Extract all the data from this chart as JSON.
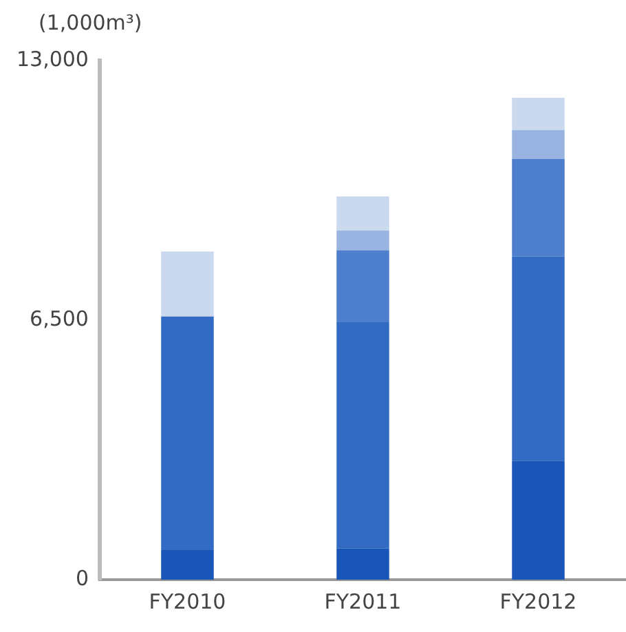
{
  "chart_data": {
    "type": "bar",
    "ylabel": "(1,000m³)",
    "categories": [
      "FY2010",
      "FY2011",
      "FY2012"
    ],
    "stacked": true,
    "series": [
      {
        "color": "#1a56b8",
        "values": [
          740,
          780,
          2980
        ]
      },
      {
        "color": "#336bc4",
        "values": [
          5850,
          5670,
          5110
        ]
      },
      {
        "color": "#4d7fcc",
        "values": [
          0,
          1800,
          2450
        ]
      },
      {
        "color": "#99b4e0",
        "values": [
          0,
          490,
          720
        ]
      },
      {
        "color": "#cbd9ef",
        "values": [
          1630,
          860,
          810
        ]
      }
    ],
    "ylim": [
      0,
      13000
    ],
    "yticks": [
      {
        "value": 0,
        "label": "0"
      },
      {
        "value": 6500,
        "label": "6,500"
      },
      {
        "value": 13000,
        "label": "13,000"
      }
    ],
    "grid": false,
    "legend": false
  }
}
